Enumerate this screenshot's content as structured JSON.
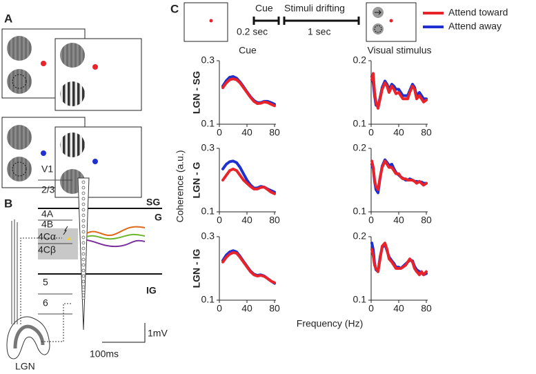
{
  "diagram": {
    "panel_a": "A",
    "panel_b": "B",
    "panel_c": "C",
    "layers": [
      "V1",
      "2/3",
      "4A",
      "4B",
      "4Cα",
      "4Cβ",
      "5",
      "6"
    ],
    "zones": [
      "SG",
      "G",
      "IG"
    ],
    "time_scale": "100ms",
    "volt_scale": "1mV",
    "lgn": "LGN",
    "cue": "Cue",
    "cue_time": "0.2 sec",
    "stim": "Stimuli drifting",
    "stim_time": "1 sec",
    "ylabel": "Coherence (a.u.)",
    "xlabel": "Frequency (Hz)"
  },
  "chart_data": [
    {
      "type": "line",
      "title": "Cue",
      "ylabel": "LGN - SG",
      "x": [
        5,
        10,
        15,
        20,
        25,
        30,
        35,
        40,
        45,
        50,
        55,
        60,
        65,
        70,
        75,
        80
      ],
      "series": [
        {
          "name": "Attend toward",
          "color": "#e8232a",
          "values": [
            0.215,
            0.23,
            0.24,
            0.243,
            0.24,
            0.23,
            0.215,
            0.2,
            0.185,
            0.172,
            0.165,
            0.166,
            0.17,
            0.168,
            0.163,
            0.158
          ]
        },
        {
          "name": "Attend away",
          "color": "#1f2fd0",
          "values": [
            0.22,
            0.237,
            0.248,
            0.25,
            0.245,
            0.233,
            0.218,
            0.202,
            0.187,
            0.175,
            0.168,
            0.168,
            0.172,
            0.172,
            0.168,
            0.163
          ]
        }
      ],
      "xlim": [
        0,
        82
      ],
      "xticks": [
        0,
        40,
        80
      ],
      "ylim": [
        0.1,
        0.3
      ],
      "yticks": [
        0.1,
        0.3
      ]
    },
    {
      "type": "line",
      "title": "Visual stimulus",
      "x": [
        1,
        3,
        5,
        7,
        10,
        13,
        16,
        20,
        23,
        26,
        30,
        33,
        36,
        40,
        43,
        46,
        50,
        53,
        56,
        60,
        63,
        66,
        70,
        73,
        76,
        80
      ],
      "series": [
        {
          "color": "#e8232a",
          "values": [
            0.17,
            0.18,
            0.15,
            0.135,
            0.125,
            0.14,
            0.155,
            0.165,
            0.16,
            0.15,
            0.16,
            0.155,
            0.148,
            0.15,
            0.145,
            0.14,
            0.14,
            0.14,
            0.15,
            0.16,
            0.155,
            0.14,
            0.145,
            0.14,
            0.135,
            0.138
          ]
        },
        {
          "color": "#1f2fd0",
          "values": [
            0.175,
            0.165,
            0.145,
            0.13,
            0.128,
            0.142,
            0.158,
            0.168,
            0.163,
            0.155,
            0.163,
            0.16,
            0.155,
            0.155,
            0.15,
            0.145,
            0.145,
            0.145,
            0.153,
            0.163,
            0.158,
            0.145,
            0.15,
            0.145,
            0.14,
            0.14
          ]
        }
      ],
      "xlim": [
        0,
        82
      ],
      "xticks": [
        0,
        40,
        80
      ],
      "ylim": [
        0.1,
        0.2
      ],
      "yticks": [
        0.1,
        0.2
      ]
    },
    {
      "type": "line",
      "ylabel": "LGN - G",
      "x": [
        5,
        10,
        15,
        20,
        25,
        30,
        35,
        40,
        45,
        50,
        55,
        60,
        65,
        70,
        75,
        80
      ],
      "series": [
        {
          "color": "#e8232a",
          "values": [
            0.2,
            0.215,
            0.23,
            0.235,
            0.23,
            0.215,
            0.2,
            0.19,
            0.18,
            0.172,
            0.172,
            0.177,
            0.178,
            0.17,
            0.162,
            0.157
          ]
        },
        {
          "color": "#1f2fd0",
          "values": [
            0.235,
            0.25,
            0.258,
            0.26,
            0.255,
            0.24,
            0.22,
            0.2,
            0.185,
            0.175,
            0.175,
            0.18,
            0.178,
            0.172,
            0.167,
            0.162
          ]
        }
      ],
      "xlim": [
        0,
        82
      ],
      "xticks": [
        0,
        40,
        80
      ],
      "ylim": [
        0.1,
        0.3
      ],
      "yticks": [
        0.1,
        0.3
      ]
    },
    {
      "type": "line",
      "x": [
        1,
        3,
        5,
        7,
        10,
        13,
        16,
        20,
        23,
        26,
        30,
        33,
        36,
        40,
        43,
        46,
        50,
        53,
        56,
        60,
        63,
        66,
        70,
        73,
        76,
        80
      ],
      "series": [
        {
          "color": "#e8232a",
          "values": [
            0.18,
            0.17,
            0.15,
            0.14,
            0.135,
            0.155,
            0.17,
            0.18,
            0.175,
            0.17,
            0.17,
            0.165,
            0.16,
            0.16,
            0.155,
            0.152,
            0.152,
            0.15,
            0.15,
            0.15,
            0.148,
            0.145,
            0.148,
            0.145,
            0.142,
            0.145
          ]
        },
        {
          "color": "#1f2fd0",
          "values": [
            0.175,
            0.168,
            0.148,
            0.135,
            0.13,
            0.153,
            0.172,
            0.182,
            0.178,
            0.173,
            0.175,
            0.168,
            0.162,
            0.158,
            0.155,
            0.153,
            0.15,
            0.15,
            0.152,
            0.15,
            0.148,
            0.148,
            0.147,
            0.147,
            0.145,
            0.145
          ]
        }
      ],
      "xlim": [
        0,
        82
      ],
      "xticks": [
        0,
        40,
        80
      ],
      "ylim": [
        0.1,
        0.2
      ],
      "yticks": [
        0.1,
        0.2
      ]
    },
    {
      "type": "line",
      "ylabel": "LGN - IG",
      "x": [
        5,
        10,
        15,
        20,
        25,
        30,
        35,
        40,
        45,
        50,
        55,
        60,
        65,
        70,
        75,
        80
      ],
      "series": [
        {
          "color": "#e8232a",
          "values": [
            0.22,
            0.235,
            0.245,
            0.25,
            0.248,
            0.235,
            0.22,
            0.205,
            0.19,
            0.18,
            0.176,
            0.178,
            0.175,
            0.168,
            0.16,
            0.155
          ]
        },
        {
          "color": "#1f2fd0",
          "values": [
            0.225,
            0.242,
            0.252,
            0.256,
            0.252,
            0.238,
            0.222,
            0.207,
            0.192,
            0.182,
            0.178,
            0.18,
            0.176,
            0.168,
            0.16,
            0.153
          ]
        }
      ],
      "xlim": [
        0,
        82
      ],
      "xticks": [
        0,
        40,
        80
      ],
      "ylim": [
        0.1,
        0.3
      ],
      "yticks": [
        0.1,
        0.3
      ]
    },
    {
      "type": "line",
      "x": [
        1,
        3,
        5,
        7,
        10,
        13,
        16,
        20,
        23,
        26,
        30,
        33,
        36,
        40,
        43,
        46,
        50,
        53,
        56,
        60,
        63,
        66,
        70,
        73,
        76,
        80
      ],
      "series": [
        {
          "color": "#e8232a",
          "values": [
            0.18,
            0.17,
            0.155,
            0.15,
            0.145,
            0.165,
            0.185,
            0.19,
            0.18,
            0.165,
            0.16,
            0.155,
            0.15,
            0.15,
            0.15,
            0.152,
            0.155,
            0.16,
            0.165,
            0.16,
            0.15,
            0.145,
            0.14,
            0.145,
            0.14,
            0.145
          ]
        },
        {
          "color": "#1f2fd0",
          "values": [
            0.19,
            0.18,
            0.158,
            0.148,
            0.145,
            0.168,
            0.183,
            0.188,
            0.178,
            0.168,
            0.162,
            0.158,
            0.152,
            0.152,
            0.15,
            0.153,
            0.157,
            0.16,
            0.163,
            0.162,
            0.153,
            0.148,
            0.145,
            0.143,
            0.14,
            0.142
          ]
        }
      ],
      "xlim": [
        0,
        82
      ],
      "xticks": [
        0,
        40,
        80
      ],
      "ylim": [
        0.1,
        0.2
      ],
      "yticks": [
        0.1,
        0.2
      ]
    }
  ]
}
